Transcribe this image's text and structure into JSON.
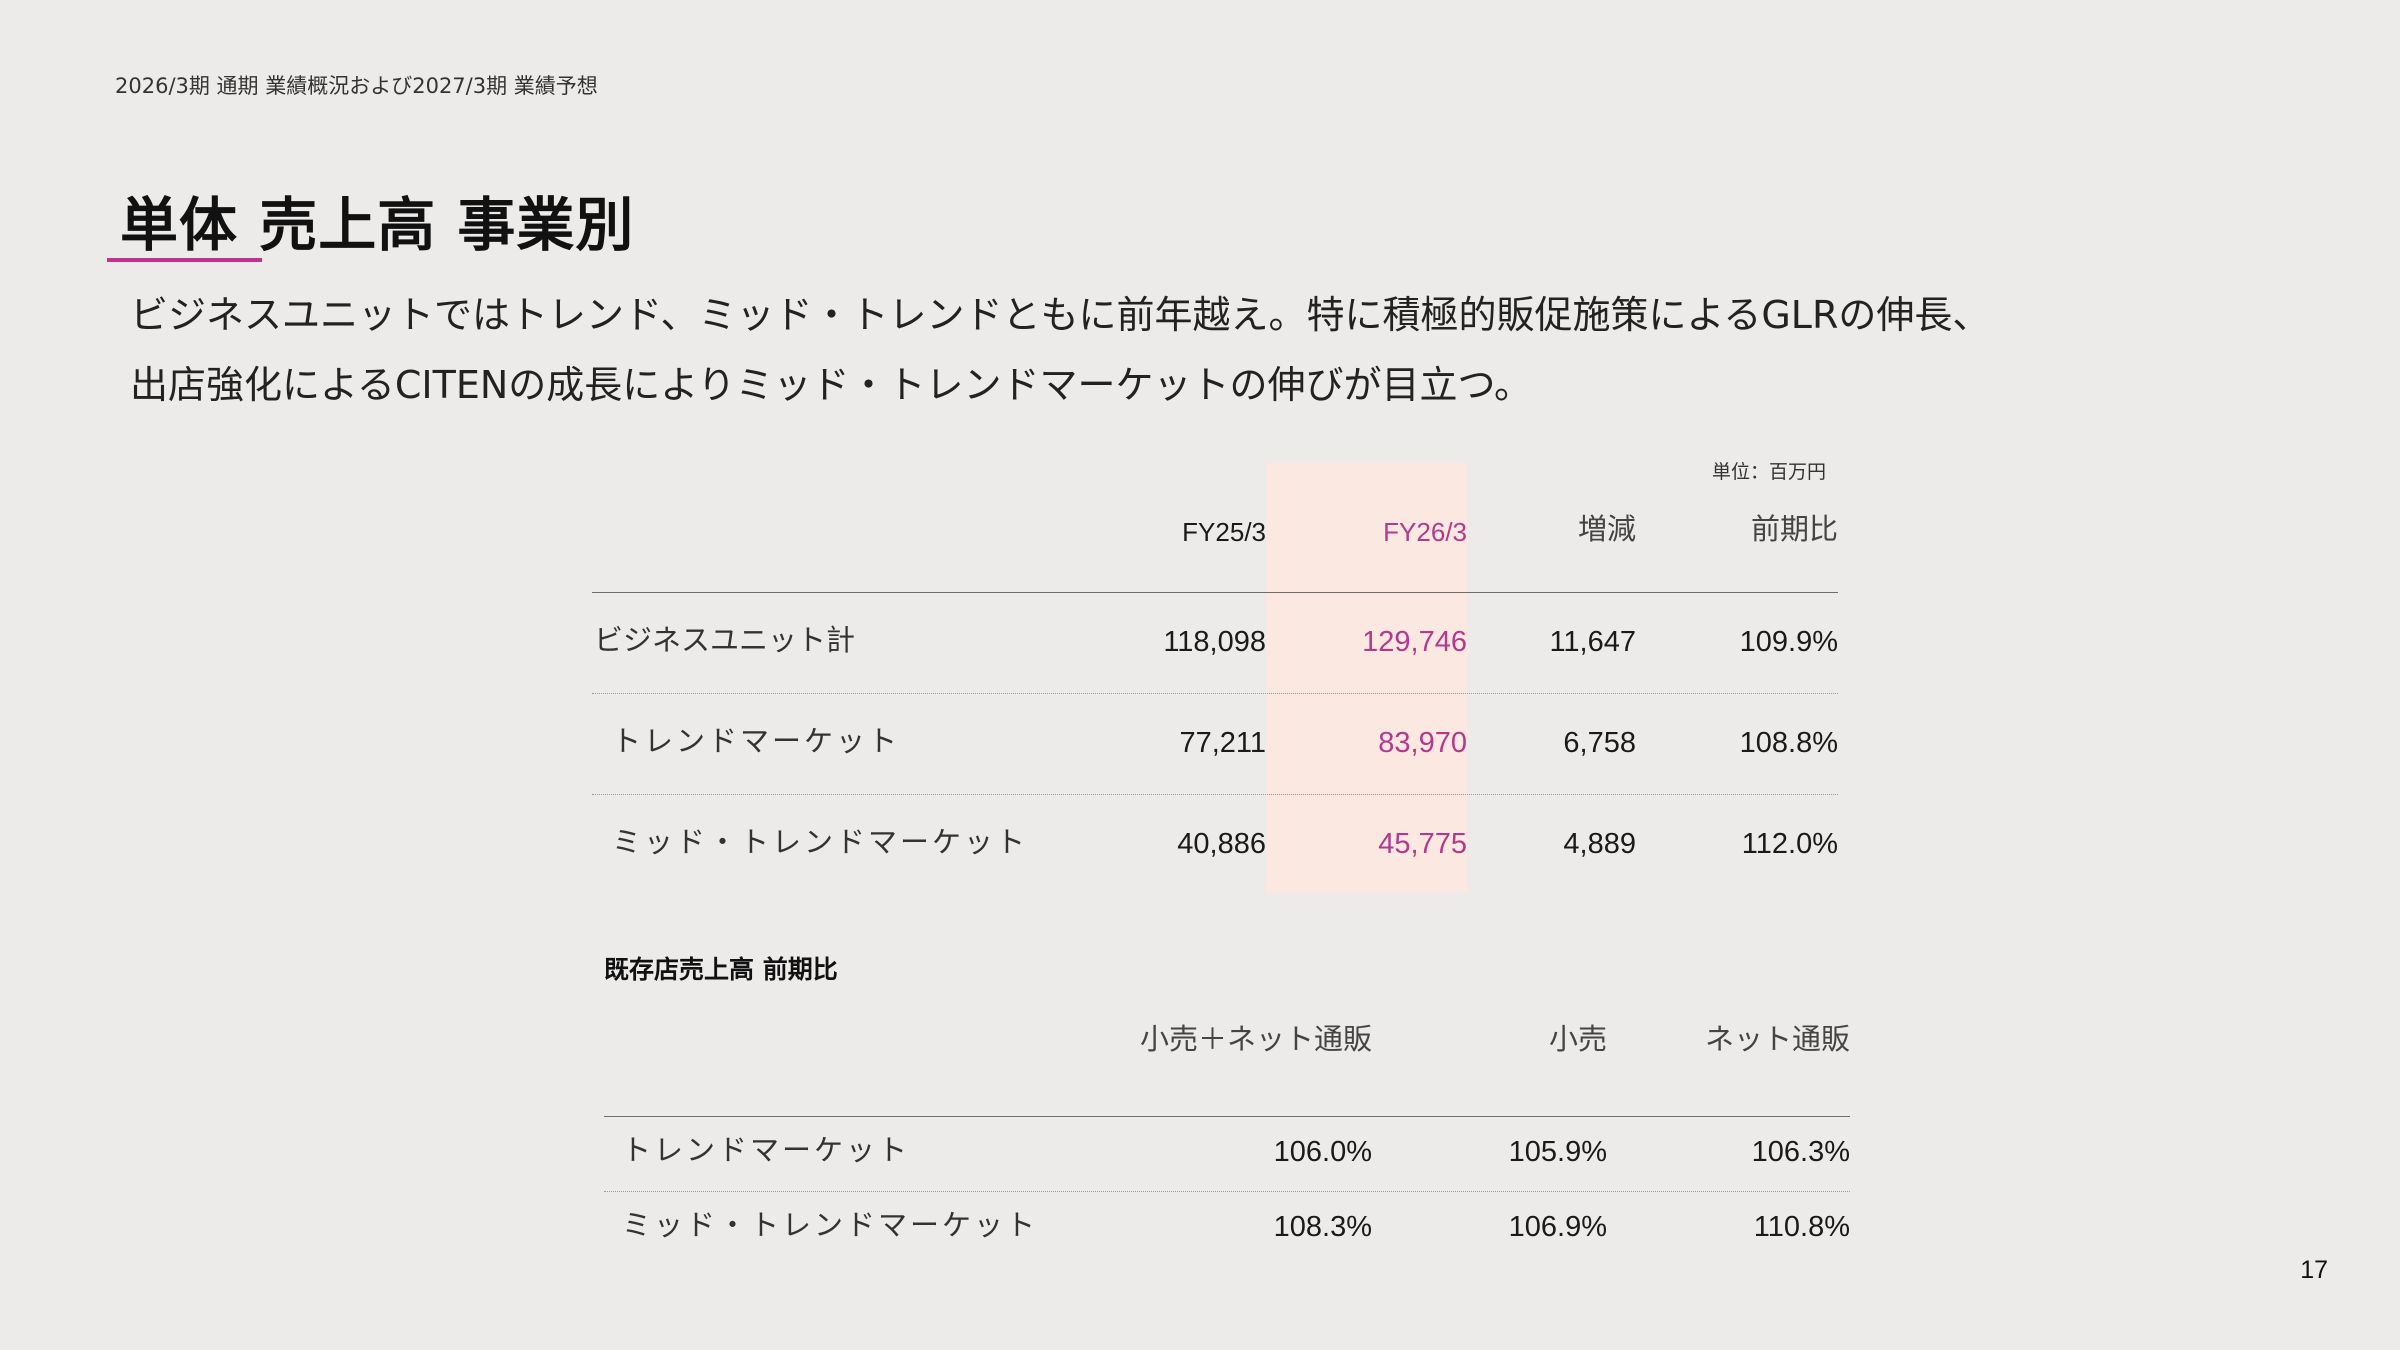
{
  "header_label": "2026/3期 通期 業績概況および2027/3期 業績予想",
  "title": "単体 売上高 事業別",
  "summary_lines": [
    "ビジネスユニットではトレンド、ミッド・トレンドともに前年越え。特に積極的販促施策によるGLRの伸長、",
    "出店強化によるCITENの成長によりミッド・トレンドマーケットの伸びが目立つ。"
  ],
  "accent_color": "#b23a8e",
  "highlight_color": "#fbe8e1",
  "table1": {
    "unit": "単位：百万円",
    "columns": [
      "FY25/3",
      "FY26/3",
      "増減",
      "前期比"
    ],
    "rows": [
      {
        "name": "ビジネスユニット計",
        "fy25": "118,098",
        "fy26": "129,746",
        "diff": "11,647",
        "ratio": "109.9%"
      },
      {
        "name": "トレンドマーケット",
        "fy25": "77,211",
        "fy26": "83,970",
        "diff": "6,758",
        "ratio": "108.8%"
      },
      {
        "name": "ミッド・トレンドマーケット",
        "fy25": "40,886",
        "fy26": "45,775",
        "diff": "4,889",
        "ratio": "112.0%"
      }
    ]
  },
  "table2": {
    "title": "既存店売上高 前期比",
    "columns": [
      "小売＋ネット通販",
      "小売",
      "ネット通販"
    ],
    "rows": [
      {
        "name": "トレンドマーケット",
        "total": "106.0%",
        "retail": "105.9%",
        "online": "106.3%"
      },
      {
        "name": "ミッド・トレンドマーケット",
        "total": "108.3%",
        "retail": "106.9%",
        "online": "110.8%"
      }
    ]
  },
  "page_number": "17"
}
